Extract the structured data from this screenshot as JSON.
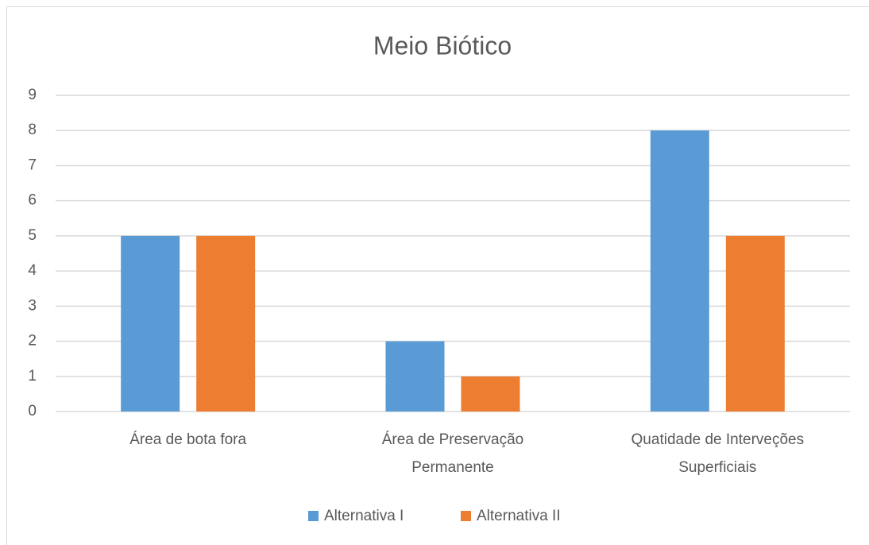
{
  "chart_data": {
    "type": "bar",
    "title": "Meio Biótico",
    "categories": [
      "Área de bota fora",
      "Área de Preservação\nPermanente",
      "Quatidade de Interveções\nSuperficiais"
    ],
    "series": [
      {
        "name": "Alternativa I",
        "color": "#5b9bd5",
        "values": [
          5,
          2,
          8
        ]
      },
      {
        "name": "Alternativa II",
        "color": "#ed7d31",
        "values": [
          5,
          1,
          5
        ]
      }
    ],
    "ylim": [
      0,
      9
    ],
    "yticks": [
      0,
      1,
      2,
      3,
      4,
      5,
      6,
      7,
      8,
      9
    ],
    "grid": true,
    "legend": "bottom"
  }
}
